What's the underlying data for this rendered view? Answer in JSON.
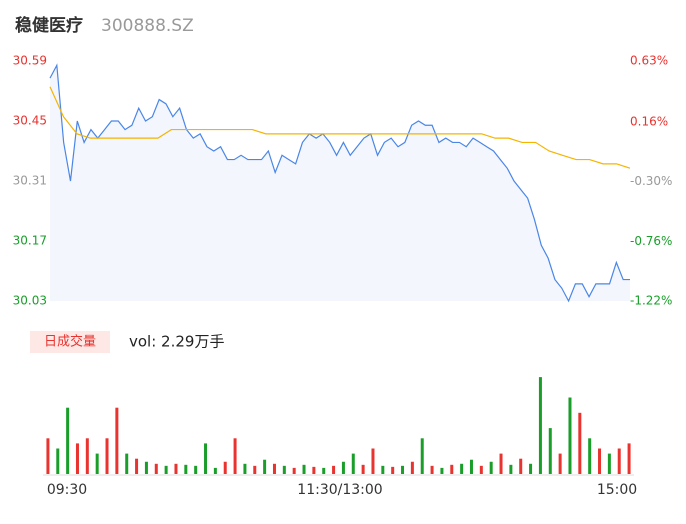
{
  "chart_data": {
    "type": "line",
    "title": "稳健医疗",
    "subtitle": "300888.SZ",
    "ylim": [
      30.03,
      30.59
    ],
    "yticks": [
      30.59,
      30.45,
      30.31,
      30.17,
      30.03
    ],
    "y2lim": [
      -1.22,
      0.63
    ],
    "y2ticks": [
      {
        "value": 0.63,
        "label": "0.63%"
      },
      {
        "value": 0.16,
        "label": "0.16%"
      },
      {
        "value": -0.3,
        "label": "-0.30%"
      },
      {
        "value": -0.76,
        "label": "-0.76%"
      },
      {
        "value": -1.22,
        "label": "-1.22%"
      }
    ],
    "tick_colors": [
      "#e8332f",
      "#e8332f",
      "#999999",
      "#1a9e2a",
      "#1a9e2a"
    ],
    "x_labels": [
      "09:30",
      "11:30/13:00",
      "15:00"
    ],
    "series": [
      {
        "color": "#4a86e8",
        "values": [
          30.55,
          30.58,
          30.4,
          30.31,
          30.45,
          30.4,
          30.43,
          30.41,
          30.43,
          30.45,
          30.45,
          30.43,
          30.44,
          30.48,
          30.45,
          30.46,
          30.5,
          30.49,
          30.46,
          30.48,
          30.43,
          30.41,
          30.42,
          30.39,
          30.38,
          30.39,
          30.36,
          30.36,
          30.37,
          30.36,
          30.36,
          30.36,
          30.38,
          30.33,
          30.37,
          30.36,
          30.35,
          30.4,
          30.42,
          30.41,
          30.42,
          30.4,
          30.37,
          30.4,
          30.37,
          30.39,
          30.41,
          30.42,
          30.37,
          30.4,
          30.41,
          30.39,
          30.4,
          30.44,
          30.45,
          30.44,
          30.44,
          30.4,
          30.41,
          30.4,
          30.4,
          30.39,
          30.41,
          30.4,
          30.39,
          30.38,
          30.36,
          30.34,
          30.31,
          30.29,
          30.27,
          30.22,
          30.16,
          30.13,
          30.08,
          30.06,
          30.03,
          30.07,
          30.07,
          30.04,
          30.07,
          30.07,
          30.07,
          30.12,
          30.08,
          30.08
        ]
      },
      {
        "color": "#f5b400",
        "values": [
          30.53,
          30.46,
          30.42,
          30.41,
          30.41,
          30.41,
          30.41,
          30.41,
          30.41,
          30.43,
          30.43,
          30.43,
          30.43,
          30.43,
          30.43,
          30.43,
          30.42,
          30.42,
          30.42,
          30.42,
          30.42,
          30.42,
          30.42,
          30.42,
          30.42,
          30.42,
          30.42,
          30.42,
          30.42,
          30.42,
          30.42,
          30.42,
          30.42,
          30.41,
          30.41,
          30.4,
          30.4,
          30.38,
          30.37,
          30.36,
          30.36,
          30.35,
          30.35,
          30.34
        ]
      }
    ],
    "volume": {
      "label": "日成交量",
      "text": "vol: 2.29万手",
      "ylim": [
        0,
        100
      ],
      "colors": {
        "up": "#e8332f",
        "down": "#1a9e2a"
      },
      "values": [
        35,
        25,
        65,
        30,
        35,
        20,
        35,
        65,
        20,
        15,
        12,
        10,
        8,
        10,
        9,
        8,
        30,
        6,
        12,
        35,
        10,
        8,
        14,
        10,
        8,
        6,
        9,
        7,
        6,
        8,
        12,
        20,
        9,
        25,
        8,
        7,
        8,
        12,
        35,
        8,
        6,
        9,
        10,
        14,
        8,
        12,
        20,
        9,
        15,
        10,
        95,
        45,
        20,
        75,
        60,
        35,
        25,
        20,
        25,
        30
      ],
      "direction": [
        "up",
        "down",
        "down",
        "up",
        "up",
        "down",
        "up",
        "up",
        "down",
        "up",
        "down",
        "up",
        "down",
        "up",
        "down",
        "down",
        "down",
        "down",
        "up",
        "up",
        "down",
        "up",
        "down",
        "up",
        "down",
        "up",
        "down",
        "up",
        "down",
        "up",
        "down",
        "down",
        "up",
        "up",
        "down",
        "up",
        "down",
        "up",
        "down",
        "up",
        "down",
        "up",
        "down",
        "down",
        "up",
        "down",
        "up",
        "down",
        "up",
        "down",
        "down",
        "down",
        "up",
        "down",
        "up",
        "down",
        "up",
        "down",
        "up",
        "up"
      ]
    }
  }
}
